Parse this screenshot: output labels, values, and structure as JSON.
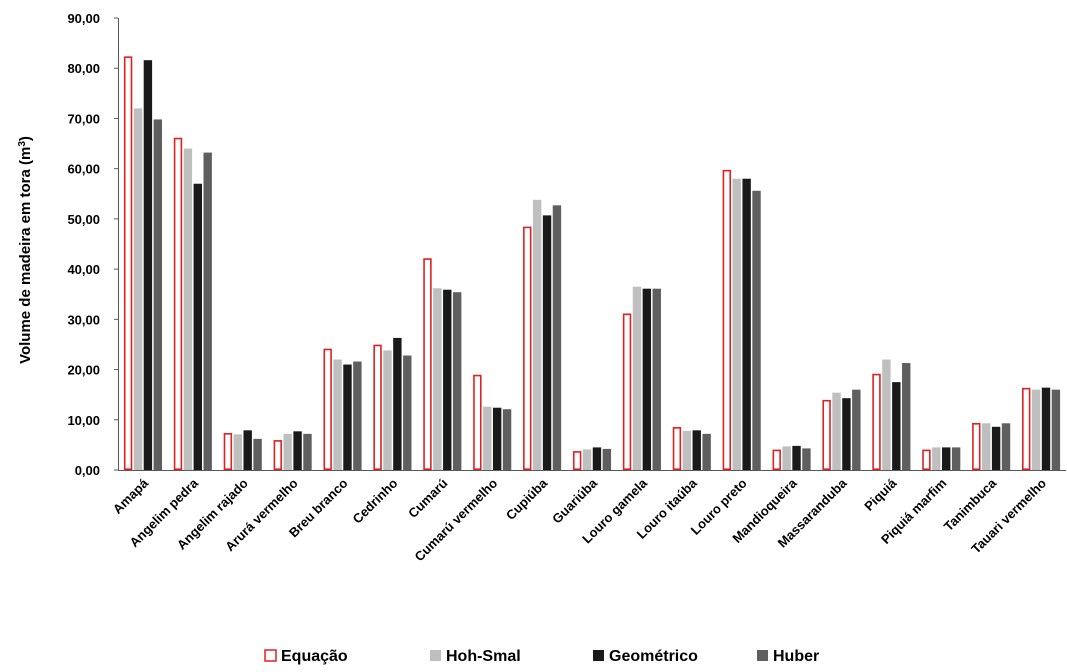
{
  "chart_data": {
    "type": "bar",
    "categories": [
      "Amapá",
      "Angelim pedra",
      "Angelim rajado",
      "Arurá vermelho",
      "Breu branco",
      "Cedrinho",
      "Cumarú",
      "Cumarú vermelho",
      "Cupiúba",
      "Guariúba",
      "Louro gamela",
      "Louro itaúba",
      "Louro preto",
      "Mandioqueira",
      "Massaranduba",
      "Piquiá",
      "Piquiá marfim",
      "Tanimbuca",
      "Tauari vermelho"
    ],
    "series": [
      {
        "name": "Equação",
        "color": "#e02020",
        "fill": "#ffffff",
        "values": [
          82.2,
          66.0,
          7.2,
          5.8,
          24.0,
          24.8,
          42.0,
          18.8,
          48.3,
          3.6,
          31.0,
          8.4,
          59.6,
          3.9,
          13.8,
          19.0,
          3.9,
          9.2,
          16.2
        ]
      },
      {
        "name": "Hoh-Smal",
        "color": "#bfbfbf",
        "values": [
          72.0,
          64.0,
          7.1,
          7.2,
          22.0,
          23.8,
          36.2,
          12.6,
          53.8,
          4.1,
          36.5,
          7.8,
          58.0,
          4.7,
          15.4,
          22.0,
          4.5,
          9.3,
          16.0
        ]
      },
      {
        "name": "Geométrico",
        "color": "#1a1a1a",
        "values": [
          81.6,
          57.0,
          7.9,
          7.7,
          21.0,
          26.3,
          35.9,
          12.4,
          50.7,
          4.5,
          36.1,
          7.9,
          58.0,
          4.8,
          14.3,
          17.5,
          4.5,
          8.6,
          16.4
        ]
      },
      {
        "name": "Huber",
        "color": "#5f5f5f",
        "values": [
          69.8,
          63.2,
          6.2,
          7.2,
          21.6,
          22.8,
          35.4,
          12.1,
          52.7,
          4.2,
          36.1,
          7.2,
          55.6,
          4.3,
          16.0,
          21.3,
          4.5,
          9.3,
          16.0
        ]
      }
    ],
    "ylabel": "Volume de madeira em tora (m³)",
    "ylabel_main": "Volume de madeira em tora (m",
    "ylabel_sup": "3",
    "ylabel_end": ")",
    "ylim": [
      0,
      90
    ],
    "yticks": [
      "0,00",
      "10,00",
      "20,00",
      "30,00",
      "40,00",
      "50,00",
      "60,00",
      "70,00",
      "80,00",
      "90,00"
    ],
    "legend_position": "bottom",
    "grid": false
  }
}
